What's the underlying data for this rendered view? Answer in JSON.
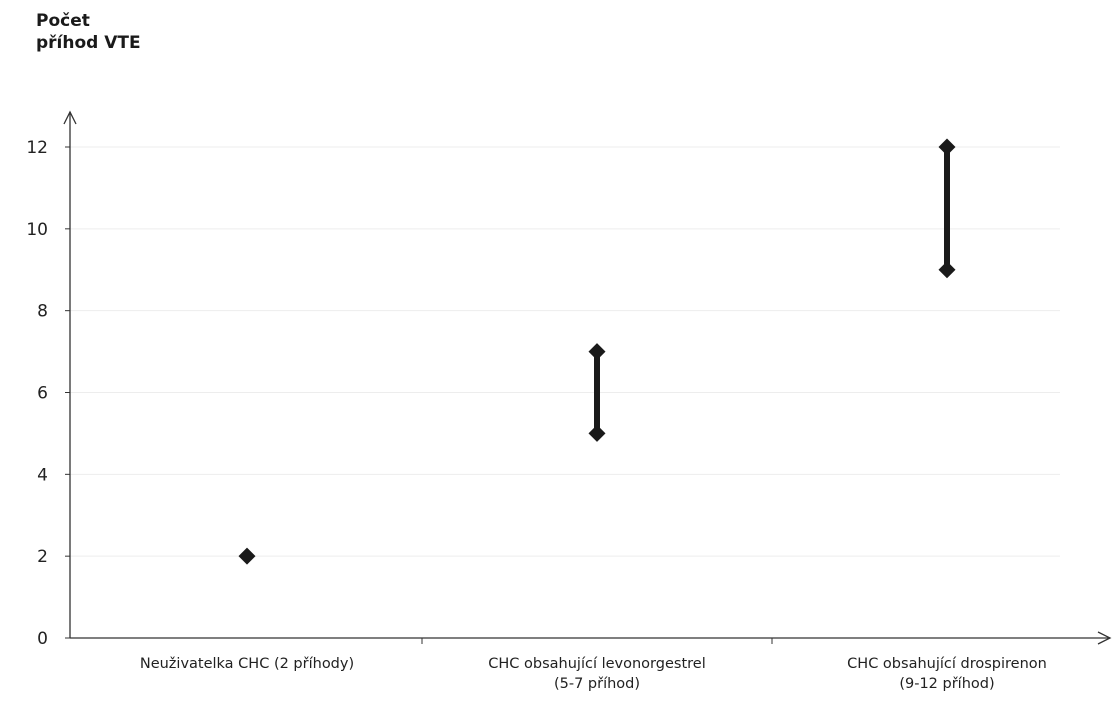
{
  "chart_data": {
    "type": "scatter",
    "ylabel": [
      "Počet",
      "příhod VTE"
    ],
    "xlabel": "",
    "ylim": [
      0,
      12
    ],
    "yticks": [
      0,
      2,
      4,
      6,
      8,
      10,
      12
    ],
    "grid": true,
    "categories": [
      [
        "Neuživatelka CHC (2 příhody)"
      ],
      [
        "CHC obsahující levonorgestrel",
        "(5-7 příhod)"
      ],
      [
        "CHC obsahující drospirenon",
        "(9-12 příhod)"
      ]
    ],
    "ranges": [
      {
        "low": 2,
        "high": 2
      },
      {
        "low": 5,
        "high": 7
      },
      {
        "low": 9,
        "high": 12
      }
    ],
    "marker_color": "#1a1a1a",
    "axis_color": "#333333",
    "grid_color": "#ededed"
  }
}
